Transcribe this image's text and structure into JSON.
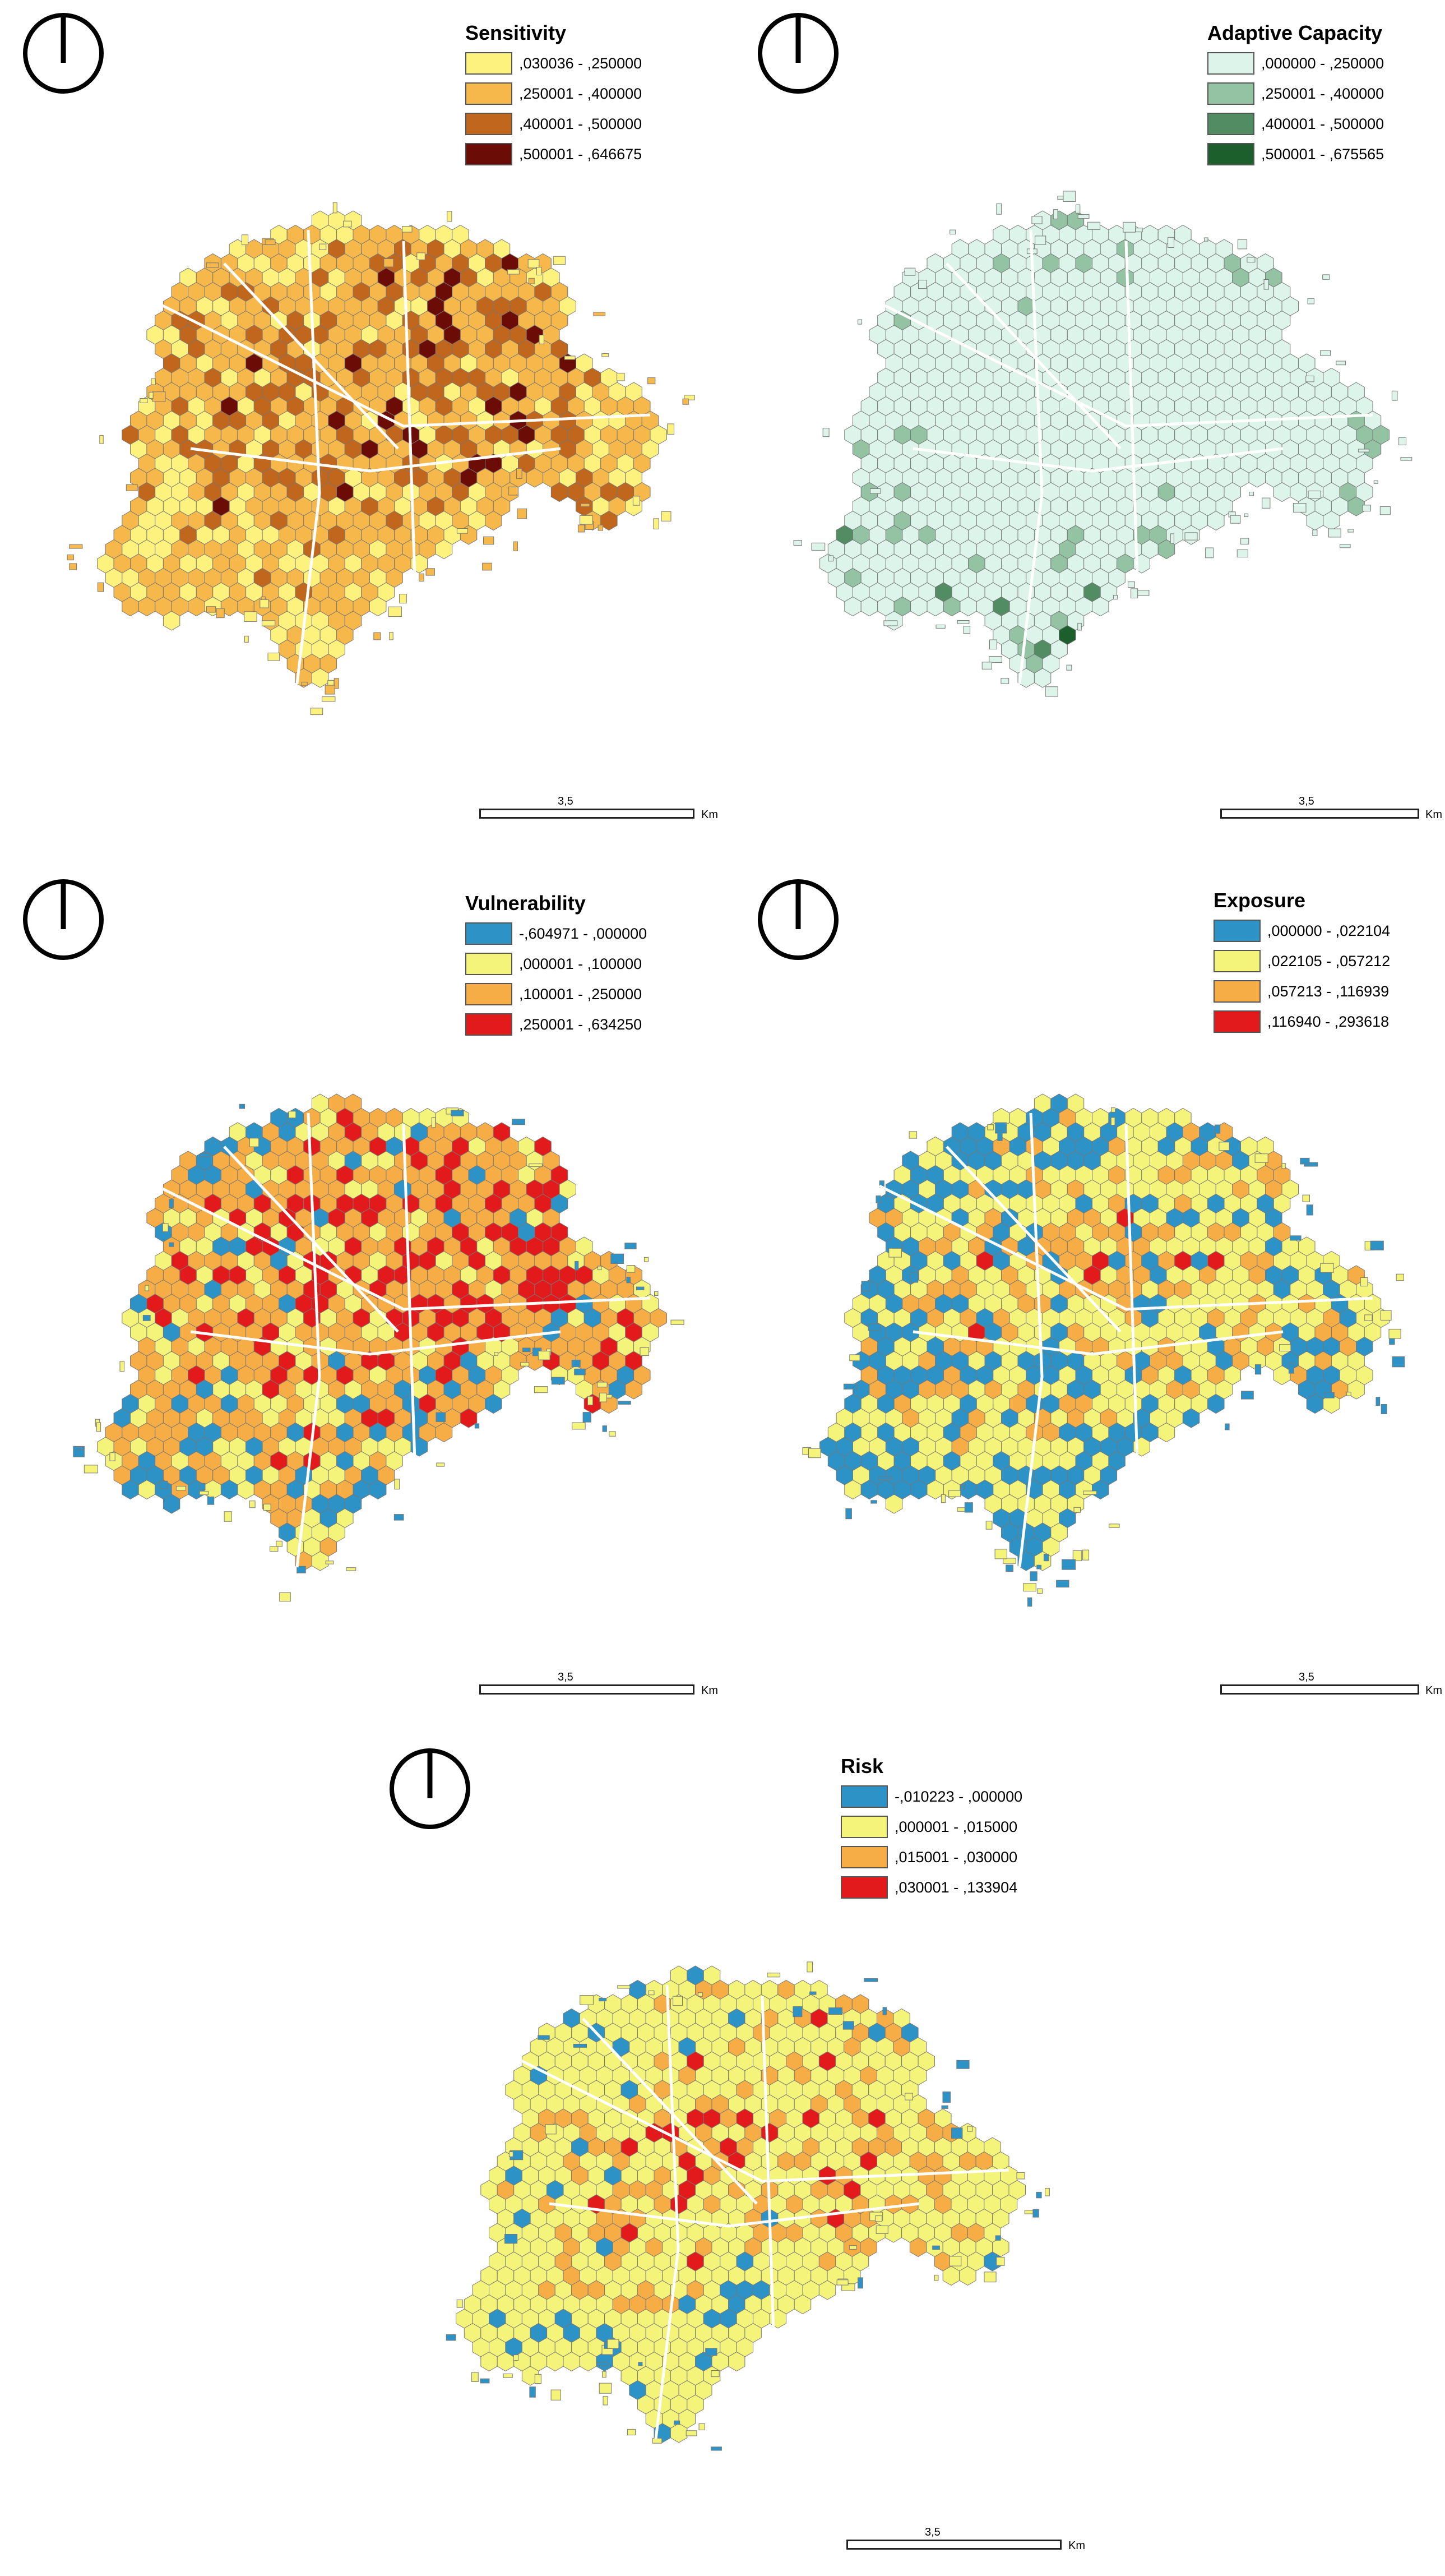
{
  "maps": [
    {
      "id": "sensitivity",
      "title": "Sensitivity",
      "classes": [
        {
          "label": ",030036 - ,250000",
          "color": "#fdf27d"
        },
        {
          "label": ",250001 - ,400000",
          "color": "#f6b84a"
        },
        {
          "label": ",400001 - ,500000",
          "color": "#c0661d"
        },
        {
          "label": ",500001 - ,646675",
          "color": "#6b0c06"
        }
      ],
      "weights": [
        0.34,
        0.34,
        0.2,
        0.12
      ],
      "scale": {
        "value": "3,5",
        "unit": "Km"
      }
    },
    {
      "id": "adaptive-capacity",
      "title": "Adaptive Capacity",
      "classes": [
        {
          "label": ",000000 - ,250000",
          "color": "#ddf4ea"
        },
        {
          "label": ",250001 - ,400000",
          "color": "#93c3a3"
        },
        {
          "label": ",400001 - ,500000",
          "color": "#528c63"
        },
        {
          "label": ",500001 - ,675565",
          "color": "#1c5e2c"
        }
      ],
      "weights": [
        0.78,
        0.14,
        0.05,
        0.03
      ],
      "scale": {
        "value": "3,5",
        "unit": "Km"
      }
    },
    {
      "id": "vulnerability",
      "title": "Vulnerability",
      "classes": [
        {
          "label": "-,604971 - ,000000",
          "color": "#2d93c6"
        },
        {
          "label": ",000001 - ,100000",
          "color": "#f4f47a"
        },
        {
          "label": ",100001 - ,250000",
          "color": "#f6ad45"
        },
        {
          "label": ",250001 - ,634250",
          "color": "#e31a1c"
        }
      ],
      "weights": [
        0.22,
        0.18,
        0.33,
        0.27
      ],
      "scale": {
        "value": "3,5",
        "unit": "Km"
      }
    },
    {
      "id": "exposure",
      "title": "Exposure",
      "classes": [
        {
          "label": ",000000 - ,022104",
          "color": "#2d93c6"
        },
        {
          "label": ",022105 - ,057212",
          "color": "#f4f47a"
        },
        {
          "label": ",057213 - ,116939",
          "color": "#f6ad45"
        },
        {
          "label": ",116940 - ,293618",
          "color": "#e31a1c"
        }
      ],
      "weights": [
        0.36,
        0.33,
        0.26,
        0.05
      ],
      "scale": {
        "value": "3,5",
        "unit": "Km"
      }
    },
    {
      "id": "risk",
      "title": "Risk",
      "classes": [
        {
          "label": "-,010223 - ,000000",
          "color": "#2d93c6"
        },
        {
          "label": ",000001 - ,015000",
          "color": "#f4f47a"
        },
        {
          "label": ",015001 - ,030000",
          "color": "#f6ad45"
        },
        {
          "label": ",030001 - ,133904",
          "color": "#e31a1c"
        }
      ],
      "weights": [
        0.14,
        0.54,
        0.22,
        0.1
      ],
      "scale": {
        "value": "3,5",
        "unit": "Km"
      }
    }
  ]
}
